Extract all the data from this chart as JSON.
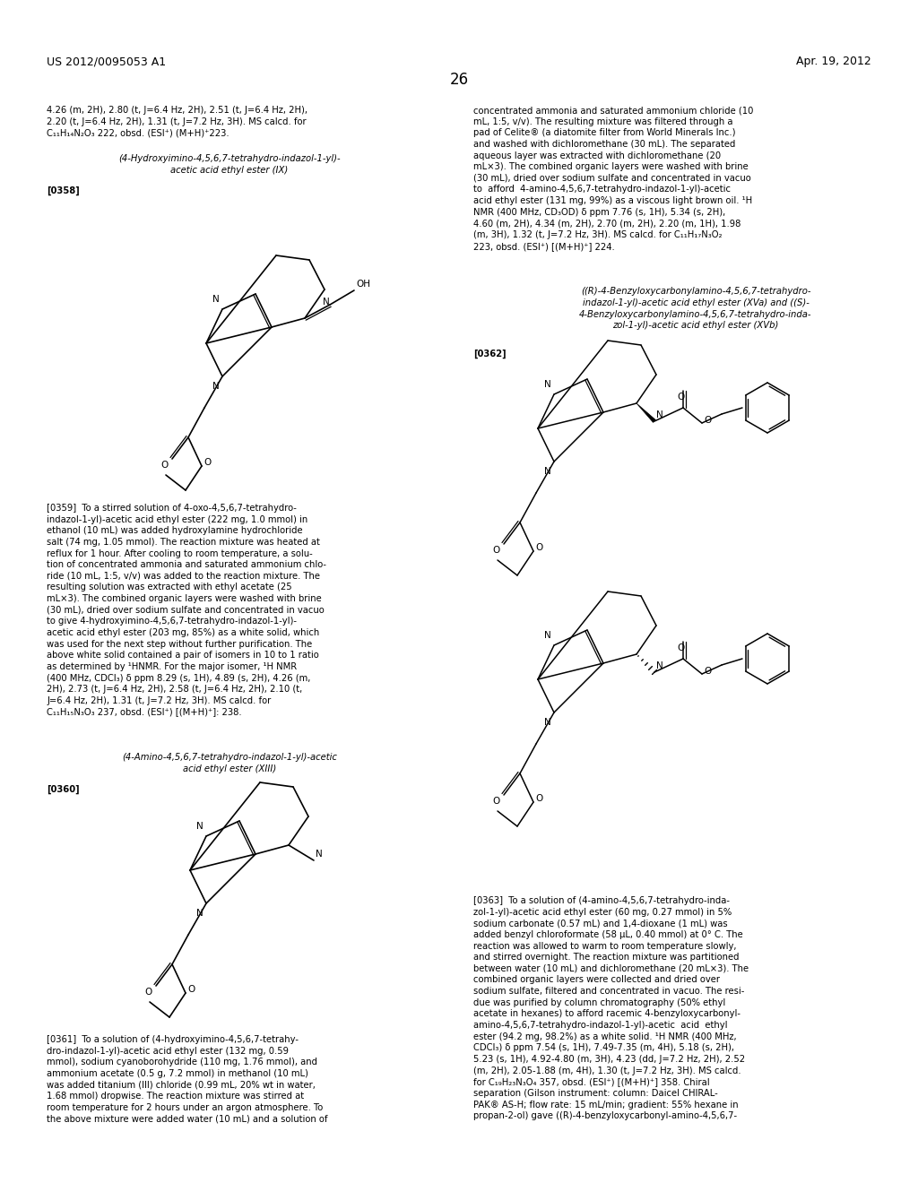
{
  "page_header_left": "US 2012/0095053 A1",
  "page_header_right": "Apr. 19, 2012",
  "page_number": "26",
  "bg": "#ffffff",
  "fs": 7.2,
  "fsh": 8.5
}
